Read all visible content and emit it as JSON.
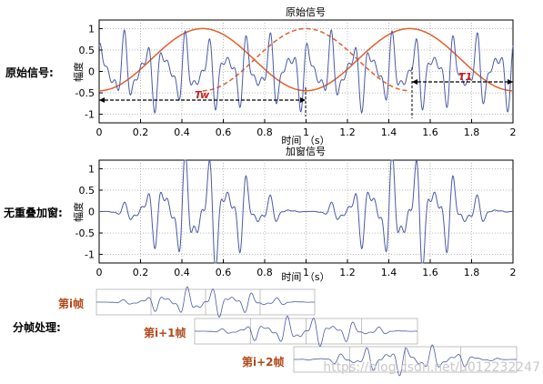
{
  "top_plot": {
    "title": "原始信号",
    "xlabel": "时间 （s）",
    "ylabel": "幅度",
    "row_label": "原始信号:",
    "y_ticks": [
      "1",
      "0.5",
      "0",
      "-0.5",
      "-1"
    ],
    "x_ticks": [
      "0",
      "0.2",
      "0.4",
      "0.6",
      "0.8",
      "1",
      "1.2",
      "1.4",
      "1.6",
      "1.8",
      "2"
    ],
    "tw_label_left": "Tw",
    "tw_label_right": "T1"
  },
  "bottom_plot": {
    "title": "加窗信号",
    "xlabel": "时间 （s）",
    "ylabel": "幅度",
    "row_label": "无重叠加窗:",
    "y_ticks": [
      "1",
      "0.5",
      "0",
      "-0.5",
      "-1"
    ],
    "x_ticks": [
      "0",
      "0.2",
      "0.4",
      "0.6",
      "0.8",
      "1",
      "1.2",
      "1.4",
      "1.6",
      "1.8",
      "2"
    ]
  },
  "frames": {
    "title": "分帧处理:",
    "frame1": "第i帧",
    "frame2": "第i+1帧",
    "frame3": "第i+2帧"
  },
  "watermark": "https://blog.csdn.net/u012232247",
  "colors": {
    "signal": "#4a5aa8",
    "window": "#e0612a",
    "frame_label": "#b04a1a",
    "axis": "#000000",
    "grid": "#8a8a8a"
  },
  "chart_data": [
    {
      "type": "line",
      "title": "原始信号",
      "xlabel": "时间 （s）",
      "ylabel": "幅度",
      "xlim": [
        0,
        2
      ],
      "ylim": [
        -1.2,
        1.2
      ],
      "grid": true
    },
    {
      "type": "line",
      "title": "加窗信号",
      "xlabel": "时间 （s）",
      "ylabel": "幅度",
      "xlim": [
        0,
        2
      ],
      "ylim": [
        -1.2,
        1.2
      ],
      "grid": true
    }
  ]
}
